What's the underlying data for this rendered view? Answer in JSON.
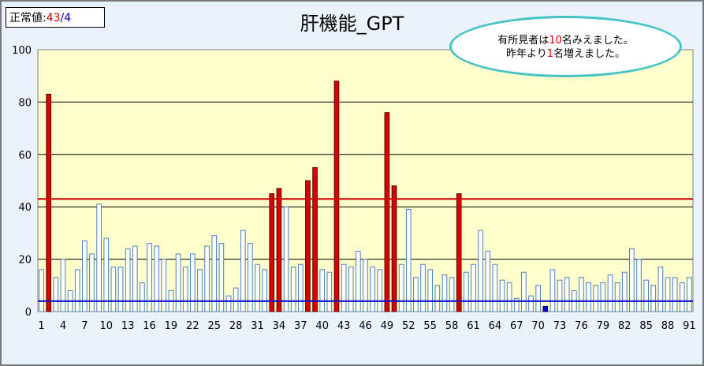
{
  "normal_value": {
    "label": "正常値:",
    "upper": "43",
    "sep": "/",
    "lower": "4"
  },
  "callout": {
    "line1": {
      "pre": "有所見者は",
      "num": "10",
      "post": "名みえました。"
    },
    "line2": {
      "pre": "昨年より",
      "num": "1",
      "post": "名増えました。"
    }
  },
  "colors": {
    "normal_bar": "#ffffff",
    "normal_bar_stroke": "#4f81bd",
    "high_bar": "#dd0000",
    "low_bar": "#0000cc",
    "upper_line": "#cc0000",
    "lower_line": "#0000cc",
    "plot_bg": "#ffffcc",
    "callout_border": "#45c3c7"
  },
  "chart_data": {
    "type": "bar",
    "title": "肝機能_GPT",
    "ylim": [
      0,
      100
    ],
    "yticks": [
      0,
      20,
      40,
      60,
      80,
      100
    ],
    "grid": true,
    "reference_lines": {
      "upper": 43,
      "lower": 4
    },
    "x_tick_labels": [
      1,
      4,
      7,
      10,
      13,
      16,
      19,
      22,
      25,
      28,
      31,
      34,
      37,
      40,
      43,
      46,
      49,
      52,
      55,
      58,
      61,
      64,
      67,
      70,
      73,
      76,
      79,
      82,
      85,
      88,
      91
    ],
    "categories": [
      1,
      2,
      3,
      4,
      5,
      6,
      7,
      8,
      9,
      10,
      11,
      12,
      13,
      14,
      15,
      16,
      17,
      18,
      19,
      20,
      21,
      22,
      23,
      24,
      25,
      26,
      27,
      28,
      29,
      30,
      31,
      32,
      33,
      34,
      35,
      36,
      37,
      38,
      39,
      40,
      41,
      42,
      43,
      44,
      45,
      46,
      47,
      48,
      49,
      50,
      51,
      52,
      53,
      54,
      55,
      56,
      57,
      58,
      59,
      60,
      61,
      62,
      63,
      64,
      65,
      66,
      67,
      68,
      69,
      70,
      71,
      72,
      73,
      74,
      75,
      76,
      77,
      78,
      79,
      80,
      81,
      82,
      83,
      84,
      85,
      86,
      87,
      88,
      89,
      90,
      91
    ],
    "values": [
      16,
      83,
      13,
      20,
      8,
      16,
      27,
      22,
      41,
      28,
      17,
      17,
      24,
      25,
      11,
      26,
      25,
      20,
      8,
      22,
      17,
      22,
      16,
      25,
      29,
      26,
      6,
      9,
      31,
      26,
      18,
      16,
      45,
      47,
      40,
      17,
      18,
      50,
      55,
      16,
      15,
      88,
      18,
      17,
      23,
      20,
      17,
      16,
      76,
      48,
      18,
      39,
      13,
      18,
      16,
      10,
      14,
      13,
      45,
      15,
      18,
      31,
      23,
      18,
      12,
      11,
      5,
      15,
      6,
      10,
      2,
      16,
      12,
      13,
      8,
      13,
      11,
      10,
      11,
      14,
      11,
      15,
      24,
      20,
      12,
      10,
      17,
      13,
      13,
      11,
      13
    ]
  }
}
